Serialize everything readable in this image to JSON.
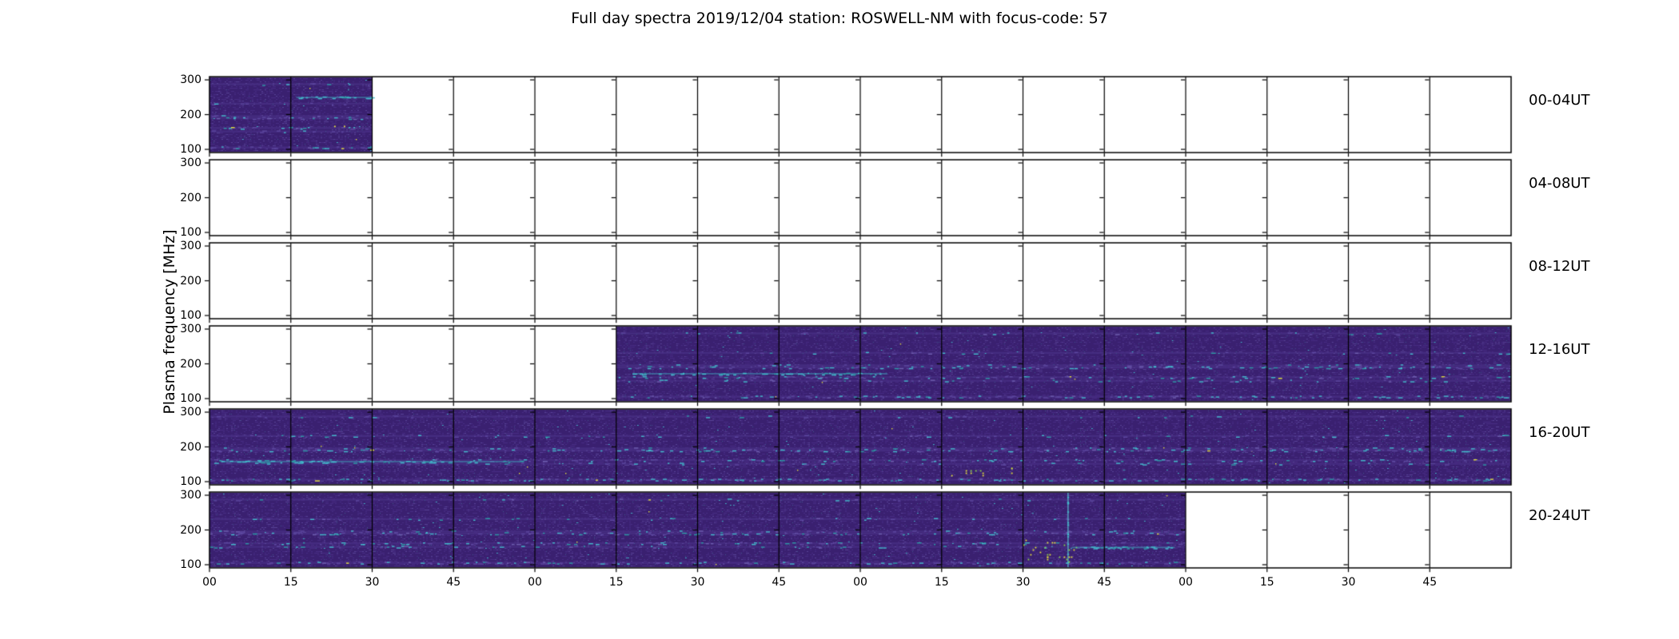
{
  "title": "Full day spectra 2019/12/04 station: ROSWELL-NM with focus-code: 57",
  "ylabel": "Plasma frequency [MHz]",
  "chart_data": {
    "type": "heatmap",
    "title": "Full day spectra 2019/12/04 station: ROSWELL-NM with focus-code: 57",
    "date": "2019/12/04",
    "station": "ROSWELL-NM",
    "focus_code": "57",
    "grid": "off",
    "colormap": "viridis (dark / low intensity)",
    "x_axis": {
      "tick_labels": [
        "00",
        "15",
        "30",
        "45",
        "00",
        "15",
        "30",
        "45",
        "00",
        "15",
        "30",
        "45",
        "00",
        "15",
        "30",
        "45"
      ],
      "minutes_per_panel": 15,
      "panels_per_row": 16,
      "row_span_minutes": 240
    },
    "y_axis": {
      "label": "Plasma frequency [MHz]",
      "tick_labels": [
        "300",
        "200",
        "100"
      ],
      "tick_values": [
        300,
        200,
        100
      ],
      "unit": "MHz",
      "range": [
        90,
        310
      ]
    },
    "rows": [
      {
        "label": "00-04UT",
        "data_segments": [
          {
            "start_min": 0,
            "end_min": 30
          }
        ]
      },
      {
        "label": "04-08UT",
        "data_segments": []
      },
      {
        "label": "08-12UT",
        "data_segments": []
      },
      {
        "label": "12-16UT",
        "data_segments": [
          {
            "start_min": 75,
            "end_min": 240
          }
        ]
      },
      {
        "label": "16-20UT",
        "data_segments": [
          {
            "start_min": 0,
            "end_min": 240
          }
        ]
      },
      {
        "label": "20-24UT",
        "data_segments": [
          {
            "start_min": 0,
            "end_min": 180
          }
        ]
      }
    ],
    "noise_bands": [
      {
        "mhz": 106,
        "density": 0.4
      },
      {
        "mhz": 152,
        "density": 0.16
      },
      {
        "mhz": 162,
        "density": 0.26
      },
      {
        "mhz": 190,
        "density": 0.36
      },
      {
        "mhz": 196,
        "density": 0.16
      },
      {
        "mhz": 232,
        "density": 0.13
      },
      {
        "mhz": 288,
        "density": 0.09
      }
    ],
    "features": [
      {
        "row": 0,
        "type": "streak",
        "mhz": 250,
        "start_min": 16,
        "end_min": 30,
        "density": 0.55
      },
      {
        "row": 0,
        "type": "dots",
        "start_min": 23,
        "end_min": 26,
        "mhz_lo": 160,
        "mhz_hi": 168,
        "count": 2
      },
      {
        "row": 3,
        "type": "streak",
        "mhz": 172,
        "start_min": 78,
        "end_min": 125,
        "density": 0.45
      },
      {
        "row": 4,
        "type": "streak",
        "mhz": 158,
        "start_min": 2,
        "end_min": 58,
        "density": 0.3
      },
      {
        "row": 4,
        "type": "dots",
        "start_min": 135,
        "end_min": 149,
        "mhz_lo": 115,
        "mhz_hi": 140,
        "count": 12
      },
      {
        "row": 5,
        "type": "vline",
        "min": 158.3
      },
      {
        "row": 5,
        "type": "dots",
        "start_min": 150,
        "end_min": 160,
        "mhz_lo": 108,
        "mhz_hi": 172,
        "count": 26
      },
      {
        "row": 5,
        "type": "streak",
        "mhz": 150,
        "start_min": 159,
        "end_min": 178,
        "density": 0.5
      }
    ],
    "palette": {
      "background": "#ffffff",
      "frame": "#000000",
      "base": "#3a2070",
      "speckle_mid": "#482c84",
      "speckle_light": "#584397",
      "speckle_blue": "#41568f",
      "dash_purple": "#5d48a0",
      "dash_light": "#6f5fb0",
      "cyan": "#43bccd",
      "teal": "#2d9aa6",
      "yellow": "#e6e23c",
      "green": "#8bd44a"
    }
  }
}
